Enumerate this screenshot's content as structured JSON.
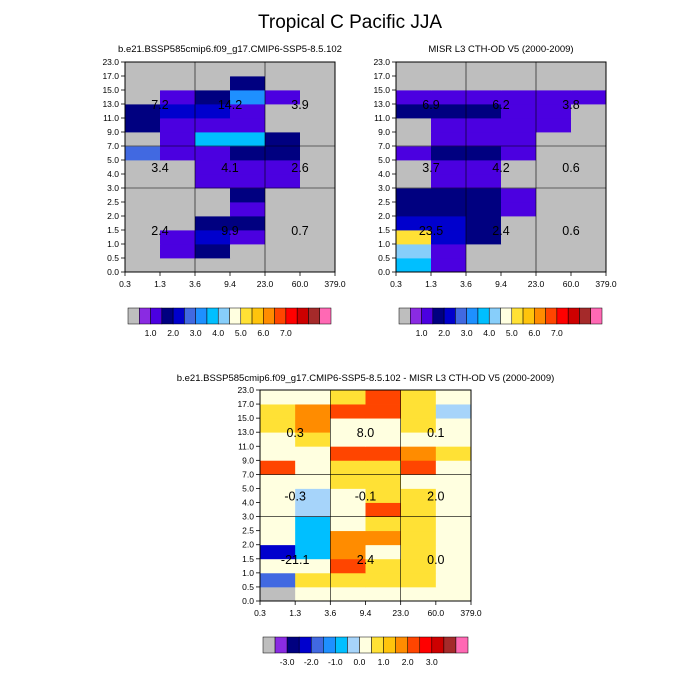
{
  "title": "Tropical C Pacific JJA",
  "chart_data": [
    {
      "type": "heatmap",
      "id": "model",
      "title": "b.e21.BSSP585cmip6.f09_g17.CMIP6-SSP5-8.5.102",
      "x_tick_labels": [
        "0.3",
        "1.3",
        "3.6",
        "9.4",
        "23.0",
        "60.0",
        "379.0"
      ],
      "y_tick_labels": [
        "0.0",
        "0.5",
        "1.0",
        "1.5",
        "2.0",
        "2.5",
        "3.0",
        "4.0",
        "5.0",
        "7.0",
        "9.0",
        "11.0",
        "13.0",
        "15.0",
        "17.0",
        "23.0"
      ],
      "cells": [
        [
          null,
          null,
          null,
          null,
          null,
          null
        ],
        [
          null,
          0.9,
          1.2,
          null,
          null,
          null
        ],
        [
          null,
          0.6,
          1.7,
          0.9,
          null,
          null
        ],
        [
          null,
          null,
          1.3,
          1.3,
          null,
          null
        ],
        [
          null,
          null,
          null,
          0.7,
          null,
          null
        ],
        [
          null,
          null,
          null,
          1.2,
          null,
          null
        ],
        [
          null,
          null,
          0.6,
          0.6,
          0.8,
          null
        ],
        [
          null,
          null,
          0.6,
          0.6,
          0.8,
          null
        ],
        [
          2.3,
          0.6,
          0.6,
          1.1,
          1.4,
          null
        ],
        [
          null,
          0.6,
          3.2,
          3.2,
          1.4,
          null
        ],
        [
          1.4,
          0.6,
          0.6,
          0.6,
          null,
          null
        ],
        [
          1.4,
          1.5,
          1.5,
          0.6,
          null,
          null
        ],
        [
          null,
          0.6,
          1.4,
          2.6,
          0.6,
          null
        ],
        [
          null,
          null,
          null,
          1.4,
          null,
          null
        ],
        [
          null,
          null,
          null,
          null,
          null,
          null
        ]
      ],
      "region_labels": [
        {
          "value": "7.2",
          "row": "high",
          "col": "low"
        },
        {
          "value": "14.2",
          "row": "high",
          "col": "mid"
        },
        {
          "value": "3.9",
          "row": "high",
          "col": "high"
        },
        {
          "value": "3.4",
          "row": "mid",
          "col": "low"
        },
        {
          "value": "4.1",
          "row": "mid",
          "col": "mid"
        },
        {
          "value": "2.6",
          "row": "mid",
          "col": "high"
        },
        {
          "value": "2.4",
          "row": "low",
          "col": "low"
        },
        {
          "value": "9.9",
          "row": "low",
          "col": "mid"
        },
        {
          "value": "0.7",
          "row": "low",
          "col": "high"
        }
      ]
    },
    {
      "type": "heatmap",
      "id": "obs",
      "title": "MISR L3 CTH-OD V5 (2000-2009)",
      "x_tick_labels": [
        "0.3",
        "1.3",
        "3.6",
        "9.4",
        "23.0",
        "60.0",
        "379.0"
      ],
      "y_tick_labels": [
        "0.0",
        "0.5",
        "1.0",
        "1.5",
        "2.0",
        "2.5",
        "3.0",
        "4.0",
        "5.0",
        "7.0",
        "9.0",
        "11.0",
        "13.0",
        "15.0",
        "17.0",
        "23.0"
      ],
      "cells": [
        [
          3.3,
          0.6,
          null,
          null,
          null,
          null
        ],
        [
          3.8,
          0.6,
          null,
          null,
          null,
          null
        ],
        [
          4.8,
          1.9,
          1.2,
          null,
          null,
          null
        ],
        [
          1.9,
          1.9,
          1.2,
          null,
          null,
          null
        ],
        [
          1.2,
          1.2,
          1.2,
          0.6,
          null,
          null
        ],
        [
          1.2,
          1.2,
          1.2,
          0.6,
          null,
          null
        ],
        [
          null,
          0.6,
          0.6,
          null,
          null,
          null
        ],
        [
          null,
          0.6,
          0.6,
          null,
          null,
          null
        ],
        [
          0.6,
          1.2,
          1.2,
          0.6,
          null,
          null
        ],
        [
          null,
          0.6,
          0.6,
          0.6,
          null,
          null
        ],
        [
          null,
          0.6,
          0.6,
          0.6,
          0.6,
          null
        ],
        [
          1.2,
          1.2,
          1.2,
          0.6,
          0.6,
          null
        ],
        [
          0.6,
          0.6,
          0.6,
          0.6,
          0.6,
          0.6
        ],
        [
          null,
          null,
          null,
          null,
          null,
          null
        ],
        [
          null,
          null,
          null,
          null,
          null,
          null
        ]
      ],
      "region_labels": [
        {
          "value": "6.9",
          "row": "high",
          "col": "low"
        },
        {
          "value": "6.2",
          "row": "high",
          "col": "mid"
        },
        {
          "value": "3.8",
          "row": "high",
          "col": "high"
        },
        {
          "value": "3.7",
          "row": "mid",
          "col": "low"
        },
        {
          "value": "4.2",
          "row": "mid",
          "col": "mid"
        },
        {
          "value": "0.6",
          "row": "mid",
          "col": "high"
        },
        {
          "value": "23.5",
          "row": "low",
          "col": "low"
        },
        {
          "value": "2.4",
          "row": "low",
          "col": "mid"
        },
        {
          "value": "0.6",
          "row": "low",
          "col": "high"
        }
      ]
    },
    {
      "type": "heatmap",
      "id": "diff",
      "title": "b.e21.BSSP585cmip6.f09_g17.CMIP6-SSP5-8.5.102 - MISR L3 CTH-OD V5 (2000-2009)",
      "x_tick_labels": [
        "0.3",
        "1.3",
        "3.6",
        "9.4",
        "23.0",
        "60.0",
        "379.0"
      ],
      "y_tick_labels": [
        "0.0",
        "0.5",
        "1.0",
        "1.5",
        "2.0",
        "2.5",
        "3.0",
        "4.0",
        "5.0",
        "7.0",
        "9.0",
        "11.0",
        "13.0",
        "15.0",
        "17.0",
        "23.0"
      ],
      "cells": [
        [
          null,
          -0.3,
          -0.1,
          -0.1,
          -0.1,
          -0.1
        ],
        [
          -2.3,
          0.1,
          0.1,
          0.1,
          0.1,
          -0.1
        ],
        [
          -0.3,
          -0.1,
          1.5,
          0.1,
          0.1,
          -0.1
        ],
        [
          -2.8,
          -1.3,
          1.2,
          -0.1,
          0.1,
          -0.1
        ],
        [
          -0.3,
          -1.3,
          1.2,
          1.2,
          0.1,
          -0.1
        ],
        [
          -0.3,
          -1.3,
          -0.3,
          0.1,
          0.1,
          -0.1
        ],
        [
          -0.1,
          -0.6,
          -0.1,
          1.5,
          0.1,
          -0.1
        ],
        [
          -0.1,
          -0.6,
          -0.1,
          0.1,
          0.1,
          -0.1
        ],
        [
          -0.1,
          -0.1,
          0.1,
          0.1,
          -0.1,
          -0.1
        ],
        [
          1.8,
          -0.1,
          0.1,
          0.1,
          1.8,
          -0.1
        ],
        [
          -0.1,
          -0.1,
          1.8,
          1.8,
          1.2,
          0.1
        ],
        [
          -0.1,
          0.1,
          -0.1,
          -0.1,
          -0.1,
          -0.1
        ],
        [
          0.1,
          1.2,
          -0.1,
          -0.1,
          0.1,
          -0.1
        ],
        [
          0.1,
          1.2,
          1.8,
          1.8,
          0.1,
          -0.8
        ],
        [
          -0.1,
          -0.1,
          0.1,
          1.5,
          0.1,
          -0.1
        ]
      ],
      "region_labels": [
        {
          "value": "0.3",
          "row": "high",
          "col": "low"
        },
        {
          "value": "8.0",
          "row": "high",
          "col": "mid"
        },
        {
          "value": "0.1",
          "row": "high",
          "col": "high"
        },
        {
          "value": "-0.3",
          "row": "mid",
          "col": "low"
        },
        {
          "value": "-0.1",
          "row": "mid",
          "col": "mid"
        },
        {
          "value": "2.0",
          "row": "mid",
          "col": "high"
        },
        {
          "value": "-21.1",
          "row": "low",
          "col": "low"
        },
        {
          "value": "2.4",
          "row": "low",
          "col": "mid"
        },
        {
          "value": "0.0",
          "row": "low",
          "col": "high"
        }
      ]
    }
  ],
  "colorbars": [
    {
      "id": "abs",
      "colors": [
        "#bebebe",
        "#8a2be2",
        "#4b00e0",
        "#000080",
        "#0000cd",
        "#4169e1",
        "#1e90ff",
        "#00bfff",
        "#87cefa",
        "#ffffe0",
        "#ffe135",
        "#ffc40c",
        "#ff8c00",
        "#ff4500",
        "#ff0000",
        "#cd0000",
        "#a52a2a",
        "#ff69b4"
      ],
      "tick_labels": [
        "1.0",
        "2.0",
        "3.0",
        "4.0",
        "5.0",
        "6.0",
        "7.0"
      ],
      "tick_positions": [
        2,
        4,
        6,
        8,
        10,
        12,
        14
      ]
    },
    {
      "id": "diff",
      "colors": [
        "#bebebe",
        "#8a2be2",
        "#000080",
        "#0000cd",
        "#4169e1",
        "#1e90ff",
        "#00bfff",
        "#a6d4fa",
        "#ffffe0",
        "#ffe135",
        "#ffc40c",
        "#ff8c00",
        "#ff4500",
        "#ff0000",
        "#cd0000",
        "#a52a2a",
        "#ff69b4"
      ],
      "tick_labels": [
        "-3.0",
        "-2.0",
        "-1.0",
        "0.0",
        "1.0",
        "2.0",
        "3.0"
      ],
      "tick_positions": [
        2,
        4,
        6,
        8,
        10,
        12,
        14
      ]
    }
  ]
}
